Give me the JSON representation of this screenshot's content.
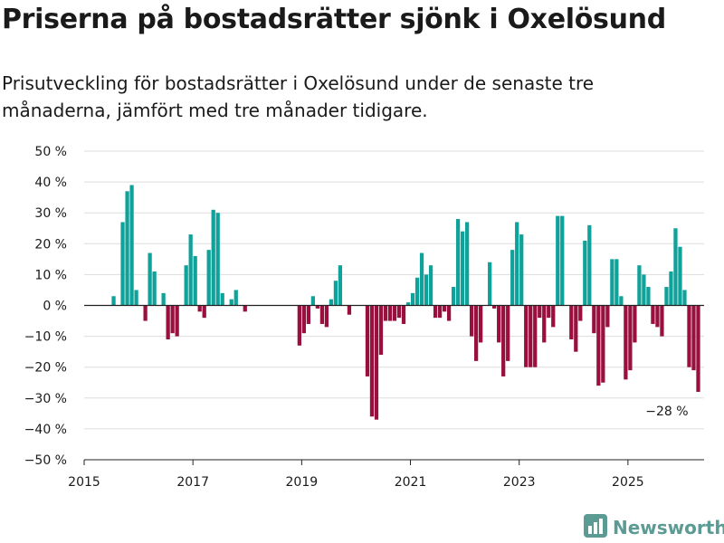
{
  "header": {
    "title": "Priserna på bostadsrätter sjönk i Oxelösund",
    "subtitle": "Prisutveckling för bostadsrätter i Oxelösund under de senaste tre månaderna, jämfört med tre månader tidigare."
  },
  "colors": {
    "positive": "#0ea29a",
    "negative": "#990f3d",
    "grid": "#dddddd",
    "axis": "#222222",
    "brand": "#5b9b94"
  },
  "brand": {
    "name": "Newsworthy",
    "icon": "bar-chart-logo-icon"
  },
  "chart_data": {
    "type": "bar",
    "title": "Priserna på bostadsrätter sjönk i Oxelösund",
    "xlabel": "",
    "ylabel": "",
    "ylim": [
      -50,
      50
    ],
    "yticks": [
      50,
      40,
      30,
      20,
      10,
      0,
      -10,
      -20,
      -30,
      -40,
      -50
    ],
    "ytick_labels": [
      "50 %",
      "40 %",
      "30 %",
      "20 %",
      "10 %",
      "0 %",
      "−10 %",
      "−20 %",
      "−30 %",
      "−40 %",
      "−50 %"
    ],
    "xlim": [
      2015.0,
      2026.4
    ],
    "xticks": [
      2015,
      2017,
      2019,
      2021,
      2023,
      2025
    ],
    "xtick_labels": [
      "2015",
      "2017",
      "2019",
      "2021",
      "2023",
      "2025"
    ],
    "start_year": 2015,
    "start_month": 1,
    "annotation": {
      "text": "−28 %",
      "x": 2025.75,
      "y": -28
    },
    "values": [
      null,
      null,
      null,
      null,
      null,
      null,
      3,
      null,
      27,
      37,
      39,
      5,
      null,
      -5,
      17,
      11,
      null,
      4,
      -11,
      -9,
      -10,
      null,
      13,
      23,
      16,
      -2,
      -4,
      18,
      31,
      30,
      4,
      null,
      2,
      5,
      null,
      -2,
      null,
      null,
      null,
      null,
      null,
      null,
      null,
      null,
      null,
      null,
      null,
      -13,
      -9,
      -6,
      3,
      -1,
      -6,
      -7,
      2,
      8,
      13,
      null,
      -3,
      null,
      null,
      null,
      -23,
      -36,
      -37,
      -16,
      -5,
      -5,
      -5,
      -4,
      -6,
      1,
      4,
      9,
      17,
      10,
      13,
      -4,
      -4,
      -2,
      -5,
      6,
      28,
      24,
      27,
      -10,
      -18,
      -12,
      null,
      14,
      -1,
      -12,
      -23,
      -18,
      18,
      27,
      23,
      -20,
      -20,
      -20,
      -4,
      -12,
      -4,
      -7,
      29,
      29,
      null,
      -11,
      -15,
      -5,
      21,
      26,
      -9,
      -26,
      -25,
      -7,
      15,
      15,
      3,
      -24,
      -21,
      -12,
      13,
      10,
      6,
      -6,
      -7,
      -10,
      6,
      11,
      25,
      19,
      5,
      -20,
      -21,
      -28
    ]
  }
}
